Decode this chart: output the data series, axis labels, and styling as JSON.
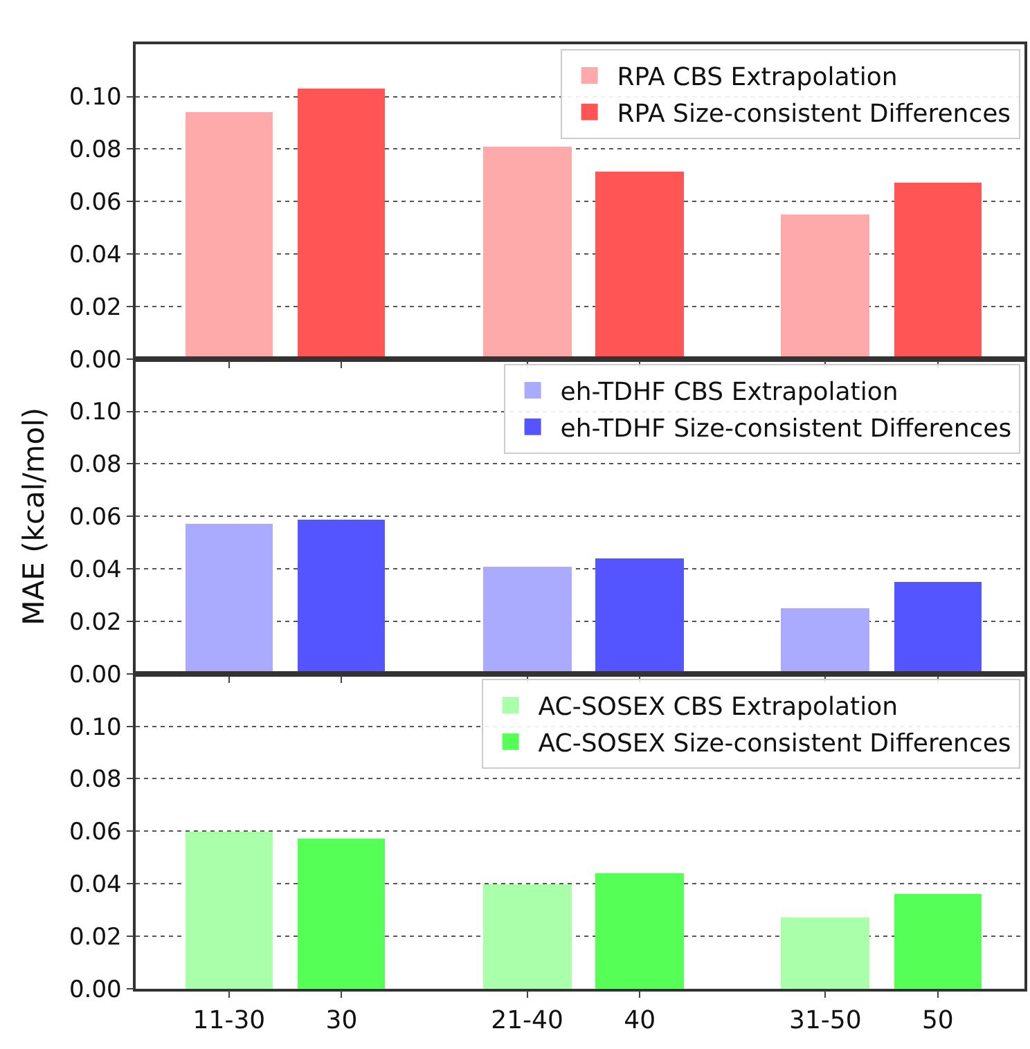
{
  "chart_data": [
    {
      "type": "bar",
      "ylim": [
        0,
        0.12
      ],
      "yticks": [
        {
          "value": 0,
          "label": "0.00"
        },
        {
          "value": 0.02,
          "label": "0.02"
        },
        {
          "value": 0.04,
          "label": "0.04"
        },
        {
          "value": 0.06,
          "label": "0.06"
        },
        {
          "value": 0.08,
          "label": "0.08"
        },
        {
          "value": 0.1,
          "label": "0.10"
        }
      ],
      "grid": "y",
      "legend": "top right",
      "tick_labels": "y",
      "series": [
        {
          "name": "RPA CBS Extrapolation",
          "color": "#ffaaaa",
          "values": [
            0.094,
            null,
            0.081,
            null,
            0.055,
            null
          ]
        },
        {
          "name": "RPA Size-consistent Differences",
          "color": "#ff5555",
          "values": [
            null,
            0.103,
            null,
            0.0715,
            null,
            0.067
          ]
        }
      ]
    },
    {
      "type": "bar",
      "ylabel": "MAE (kcal/mol)",
      "ylim": [
        0,
        0.12
      ],
      "yticks": [
        {
          "value": 0,
          "label": "0.00"
        },
        {
          "value": 0.02,
          "label": "0.02"
        },
        {
          "value": 0.04,
          "label": "0.04"
        },
        {
          "value": 0.06,
          "label": "0.06"
        },
        {
          "value": 0.08,
          "label": "0.08"
        },
        {
          "value": 0.1,
          "label": "0.10"
        }
      ],
      "grid": "y",
      "legend": "top right",
      "tick_labels": "y",
      "series": [
        {
          "name": "eh-TDHF CBS Extrapolation",
          "color": "#aaaaff",
          "values": [
            0.0575,
            null,
            0.041,
            null,
            0.025,
            null
          ]
        },
        {
          "name": "eh-TDHF Size-consistent Differences",
          "color": "#5555ff",
          "values": [
            null,
            0.059,
            null,
            0.044,
            null,
            0.035
          ]
        }
      ]
    },
    {
      "type": "bar",
      "categories": [
        "11-30",
        "30",
        "21-40",
        "40",
        "31-50",
        "50"
      ],
      "ylim": [
        0,
        0.12
      ],
      "yticks": [
        {
          "value": 0,
          "label": "0.00"
        },
        {
          "value": 0.02,
          "label": "0.02"
        },
        {
          "value": 0.04,
          "label": "0.04"
        },
        {
          "value": 0.06,
          "label": "0.06"
        },
        {
          "value": 0.08,
          "label": "0.08"
        },
        {
          "value": 0.1,
          "label": "0.10"
        }
      ],
      "grid": "y",
      "legend": "top right",
      "series": [
        {
          "name": "AC-SOSEX CBS Extrapolation",
          "color": "#aaffaa",
          "values": [
            0.06,
            null,
            0.04,
            null,
            0.027,
            null
          ]
        },
        {
          "name": "AC-SOSEX Size-consistent Differences",
          "color": "#55ff55",
          "values": [
            null,
            0.0575,
            null,
            0.044,
            null,
            0.036
          ]
        }
      ]
    }
  ]
}
